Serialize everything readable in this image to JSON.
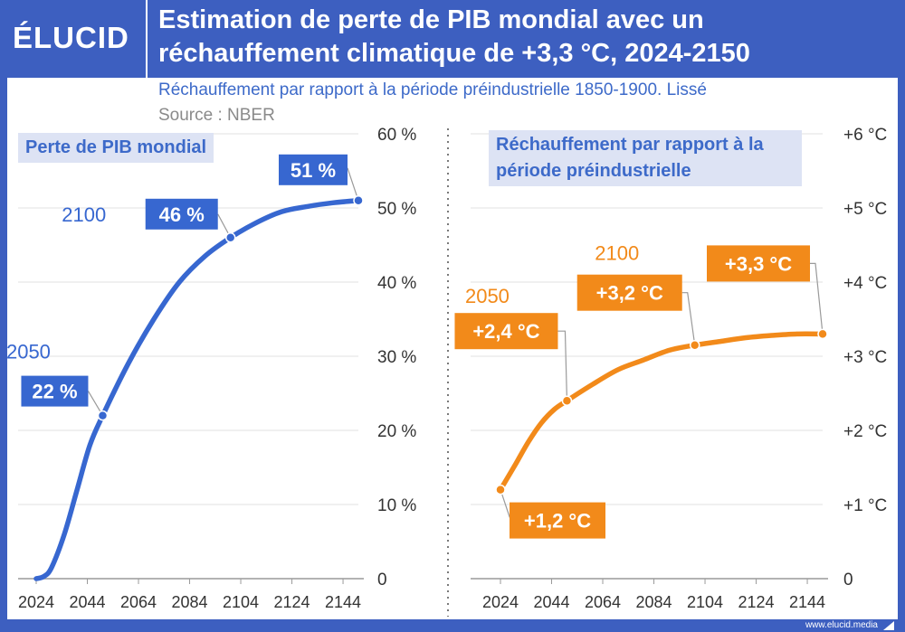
{
  "brand": {
    "logo": "ÉLUCID",
    "footer_url": "www.elucid.media"
  },
  "header": {
    "title": "Estimation de perte de PIB mondial avec un réchauffement climatique de +3,3 °C, 2024-2150",
    "subtitle": "Réchauffement par rapport à la période préindustrielle 1850-1900. Lissé",
    "source": "Source : NBER"
  },
  "colors": {
    "brand_blue": "#3d5fc0",
    "gdp_line": "#3767d0",
    "temp_line": "#f28a1a",
    "label_blue": "#3d6ac9",
    "box_bg": "#dde3f4"
  },
  "chart_data": [
    {
      "type": "line",
      "title": "Perte de PIB mondial",
      "x_tick_labels": [
        "2024",
        "2044",
        "2064",
        "2084",
        "2104",
        "2124",
        "2144"
      ],
      "y_tick_labels": [
        "0",
        "10 %",
        "20 %",
        "30 %",
        "40 %",
        "50 %",
        "60 %"
      ],
      "xlim": [
        2024,
        2150
      ],
      "ylim": [
        0,
        60
      ],
      "series": [
        {
          "name": "Perte de PIB mondial (%)",
          "x": [
            2024,
            2027,
            2030,
            2035,
            2040,
            2045,
            2050,
            2060,
            2070,
            2080,
            2090,
            2100,
            2110,
            2120,
            2130,
            2140,
            2150
          ],
          "y": [
            0,
            0.3,
            1.5,
            6,
            12,
            18,
            22,
            29,
            35,
            40,
            43.5,
            46,
            48,
            49.5,
            50.2,
            50.7,
            51
          ]
        }
      ],
      "annotations": [
        {
          "x": 2050,
          "y": 22,
          "year_label": "2050",
          "value_label": "22 %"
        },
        {
          "x": 2100,
          "y": 46,
          "year_label": "2100",
          "value_label": "46 %"
        },
        {
          "x": 2150,
          "y": 51,
          "year_label": "",
          "value_label": "51 %"
        }
      ]
    },
    {
      "type": "line",
      "title": "Réchauffement par rapport à la période préindustrielle",
      "x_tick_labels": [
        "2024",
        "2044",
        "2064",
        "2084",
        "2104",
        "2124",
        "2144"
      ],
      "y_tick_labels": [
        "0",
        "+1 °C",
        "+2 °C",
        "+3 °C",
        "+4 °C",
        "+5 °C",
        "+6 °C"
      ],
      "xlim": [
        2024,
        2150
      ],
      "ylim": [
        0,
        6
      ],
      "series": [
        {
          "name": "Réchauffement (°C)",
          "x": [
            2024,
            2030,
            2035,
            2040,
            2045,
            2050,
            2060,
            2070,
            2080,
            2090,
            2100,
            2110,
            2120,
            2130,
            2140,
            2150
          ],
          "y": [
            1.2,
            1.55,
            1.85,
            2.1,
            2.28,
            2.4,
            2.62,
            2.82,
            2.95,
            3.08,
            3.15,
            3.2,
            3.25,
            3.28,
            3.3,
            3.3
          ]
        }
      ],
      "annotations": [
        {
          "x": 2024,
          "y": 1.2,
          "year_label": "",
          "value_label": "+1,2 °C"
        },
        {
          "x": 2050,
          "y": 2.4,
          "year_label": "2050",
          "value_label": "+2,4 °C"
        },
        {
          "x": 2100,
          "y": 3.15,
          "year_label": "2100",
          "value_label": "+3,2 °C"
        },
        {
          "x": 2150,
          "y": 3.3,
          "year_label": "",
          "value_label": "+3,3 °C"
        }
      ]
    }
  ]
}
